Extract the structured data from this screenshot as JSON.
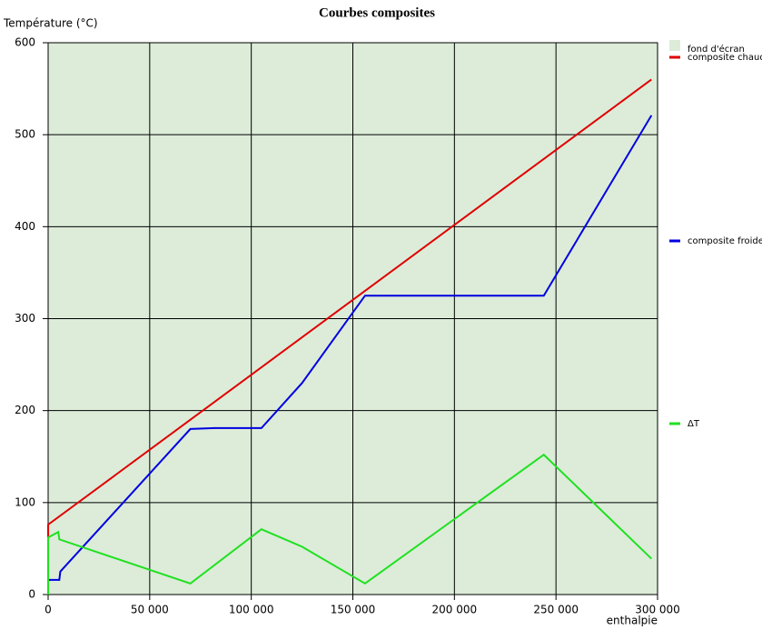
{
  "chart_data": {
    "type": "line",
    "title": "Courbes composites",
    "y_label": "Température (°C)",
    "x_label": "enthalpie",
    "background": {
      "name": "fond d'écran",
      "color": "#dcecd9"
    },
    "xlim": [
      0,
      300000
    ],
    "ylim": [
      0,
      600
    ],
    "xticks": [
      0,
      {
        "value": 50000,
        "label": "50 000"
      },
      {
        "value": 100000,
        "label": "100 000"
      },
      {
        "value": 150000,
        "label": "150 000"
      },
      {
        "value": 200000,
        "label": "200 000"
      },
      {
        "value": 250000,
        "label": "250 000"
      },
      {
        "value": 300000,
        "label": "300 000"
      }
    ],
    "yticks": [
      0,
      100,
      200,
      300,
      400,
      500,
      600
    ],
    "grid": true,
    "series": [
      {
        "name": "composite chaude",
        "color": "#e00000",
        "x": [
          0,
          0,
          297000
        ],
        "values": [
          62,
          76,
          560
        ]
      },
      {
        "name": "composite froide",
        "color": "#0000e0",
        "x": [
          0,
          5500,
          6000,
          70000,
          82000,
          105000,
          125000,
          156000,
          244000,
          297000
        ],
        "values": [
          16,
          16,
          25,
          180,
          181,
          181,
          230,
          325,
          325,
          521
        ]
      },
      {
        "name": "ΔT",
        "color": "#20e020",
        "x": [
          0,
          0,
          5000,
          5500,
          70000,
          105000,
          125000,
          156000,
          244000,
          297000
        ],
        "values": [
          0,
          62,
          68,
          60,
          12,
          71,
          52,
          12,
          152,
          39
        ]
      }
    ]
  }
}
